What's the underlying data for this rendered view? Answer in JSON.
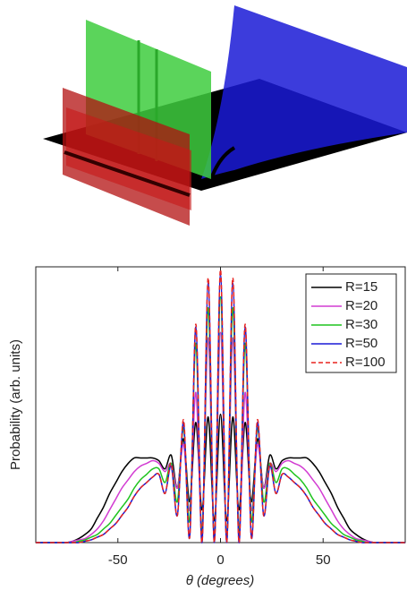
{
  "chart_data": {
    "type": "line",
    "x_label": "θ (degrees)",
    "y_label": "Probability (arb. units)",
    "x": [
      -90,
      -87,
      -84,
      -81,
      -78,
      -75,
      -72,
      -69,
      -66,
      -63,
      -60,
      -57,
      -54,
      -51,
      -48,
      -45,
      -42,
      -39,
      -36,
      -33,
      -30,
      -27,
      -24,
      -21,
      -18,
      -15,
      -12,
      -9,
      -6,
      -3,
      0,
      3,
      6,
      9,
      12,
      15,
      18,
      21,
      24,
      27,
      30,
      33,
      36,
      39,
      42,
      45,
      48,
      51,
      54,
      57,
      60,
      63,
      66,
      69,
      72,
      75,
      78,
      81,
      84,
      87,
      90
    ],
    "series": [
      {
        "name": "R=15",
        "color": "#000000",
        "dash": false,
        "values": [
          0,
          0,
          0,
          0,
          0,
          0,
          0.5,
          1.5,
          3,
          5,
          9,
          13,
          18,
          22,
          26,
          29,
          31,
          31,
          31,
          31,
          30,
          27,
          32,
          20,
          38,
          15,
          44,
          12,
          46,
          8,
          47,
          8,
          46,
          12,
          44,
          15,
          38,
          20,
          32,
          27,
          30,
          31,
          31,
          31,
          31,
          29,
          26,
          22,
          18,
          13,
          9,
          5,
          3,
          1.5,
          0.5,
          0,
          0,
          0,
          0,
          0,
          0
        ]
      },
      {
        "name": "R=20",
        "color": "#d23bd2",
        "dash": false,
        "values": [
          0,
          0,
          0,
          0,
          0,
          0,
          0.5,
          1,
          1.5,
          3,
          5,
          8,
          12,
          16,
          20,
          23,
          26,
          28,
          29,
          30,
          29,
          26,
          29,
          20,
          36,
          12,
          55,
          5,
          75,
          2,
          77,
          2,
          75,
          5,
          55,
          12,
          36,
          20,
          29,
          26,
          29,
          30,
          29,
          28,
          26,
          23,
          20,
          16,
          12,
          8,
          5,
          3,
          1.5,
          1,
          0.5,
          0,
          0,
          0,
          0,
          0,
          0
        ]
      },
      {
        "name": "R=30",
        "color": "#1fc41f",
        "dash": false,
        "values": [
          0,
          0,
          0,
          0,
          0,
          0,
          0,
          0.5,
          1,
          2,
          3,
          5,
          7,
          10,
          13,
          16,
          20,
          23,
          25,
          27,
          27,
          22,
          29,
          15,
          42,
          8,
          73,
          3,
          86,
          1,
          90,
          1,
          86,
          3,
          73,
          8,
          42,
          15,
          29,
          22,
          27,
          27,
          25,
          23,
          20,
          16,
          13,
          10,
          7,
          5,
          3,
          2,
          1,
          0.5,
          0,
          0,
          0,
          0,
          0,
          0,
          0
        ]
      },
      {
        "name": "R=50",
        "color": "#1a1ad6",
        "dash": false,
        "values": [
          0,
          0,
          0,
          0,
          0,
          0,
          0,
          0,
          0.5,
          1,
          2,
          3,
          5,
          7,
          10,
          13,
          17,
          20,
          22,
          24,
          25,
          18,
          28,
          10,
          44,
          2,
          79,
          0,
          95,
          0,
          98,
          0,
          95,
          0,
          79,
          2,
          44,
          10,
          28,
          18,
          25,
          24,
          22,
          20,
          17,
          13,
          10,
          7,
          5,
          3,
          2,
          1,
          0.5,
          0,
          0,
          0,
          0,
          0,
          0,
          0,
          0
        ]
      },
      {
        "name": "R=100",
        "color": "#e8231f",
        "dash": true,
        "values": [
          0,
          0,
          0,
          0,
          0,
          0,
          0,
          0,
          0.5,
          1,
          2,
          3,
          5,
          7,
          10,
          13,
          17,
          20,
          22,
          24,
          25,
          18,
          29,
          10,
          45,
          2,
          80,
          0,
          97,
          0,
          100,
          0,
          97,
          0,
          80,
          2,
          45,
          10,
          29,
          18,
          25,
          24,
          22,
          20,
          17,
          13,
          10,
          7,
          5,
          3,
          2,
          1,
          0.5,
          0,
          0,
          0,
          0,
          0,
          0,
          0,
          0
        ]
      }
    ],
    "xlim": [
      -90,
      90
    ],
    "xticks": [
      -50,
      0,
      50
    ],
    "ylim": [
      0,
      101
    ],
    "legend": "upper right"
  }
}
